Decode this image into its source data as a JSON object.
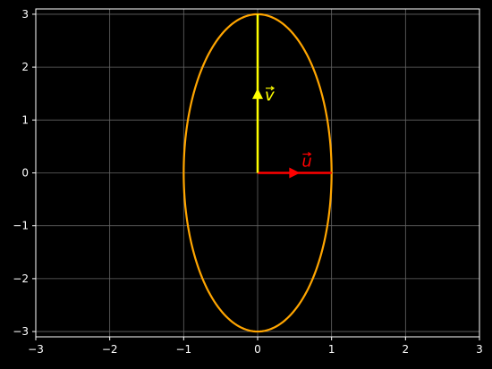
{
  "chart_data": {
    "type": "line",
    "title": "",
    "xlabel": "",
    "ylabel": "",
    "xlim": [
      -3,
      3
    ],
    "ylim": [
      -3.1,
      3.1
    ],
    "xticks": [
      "−3",
      "−2",
      "−1",
      "0",
      "1",
      "2",
      "3"
    ],
    "yticks": [
      "−3",
      "−2",
      "−1",
      "0",
      "1",
      "2",
      "3"
    ],
    "grid": true,
    "background": "#000000",
    "series": [
      {
        "kind": "ellipse",
        "center": [
          0,
          0
        ],
        "semi_x": 1,
        "semi_y": 3,
        "color": "#ffa500"
      }
    ],
    "vectors": [
      {
        "label": "u",
        "from": [
          0,
          0
        ],
        "to": [
          1,
          0
        ],
        "color": "#ff0000"
      },
      {
        "label": "v",
        "from": [
          0,
          0
        ],
        "to": [
          0,
          3
        ],
        "color": "#ffff00"
      }
    ]
  }
}
